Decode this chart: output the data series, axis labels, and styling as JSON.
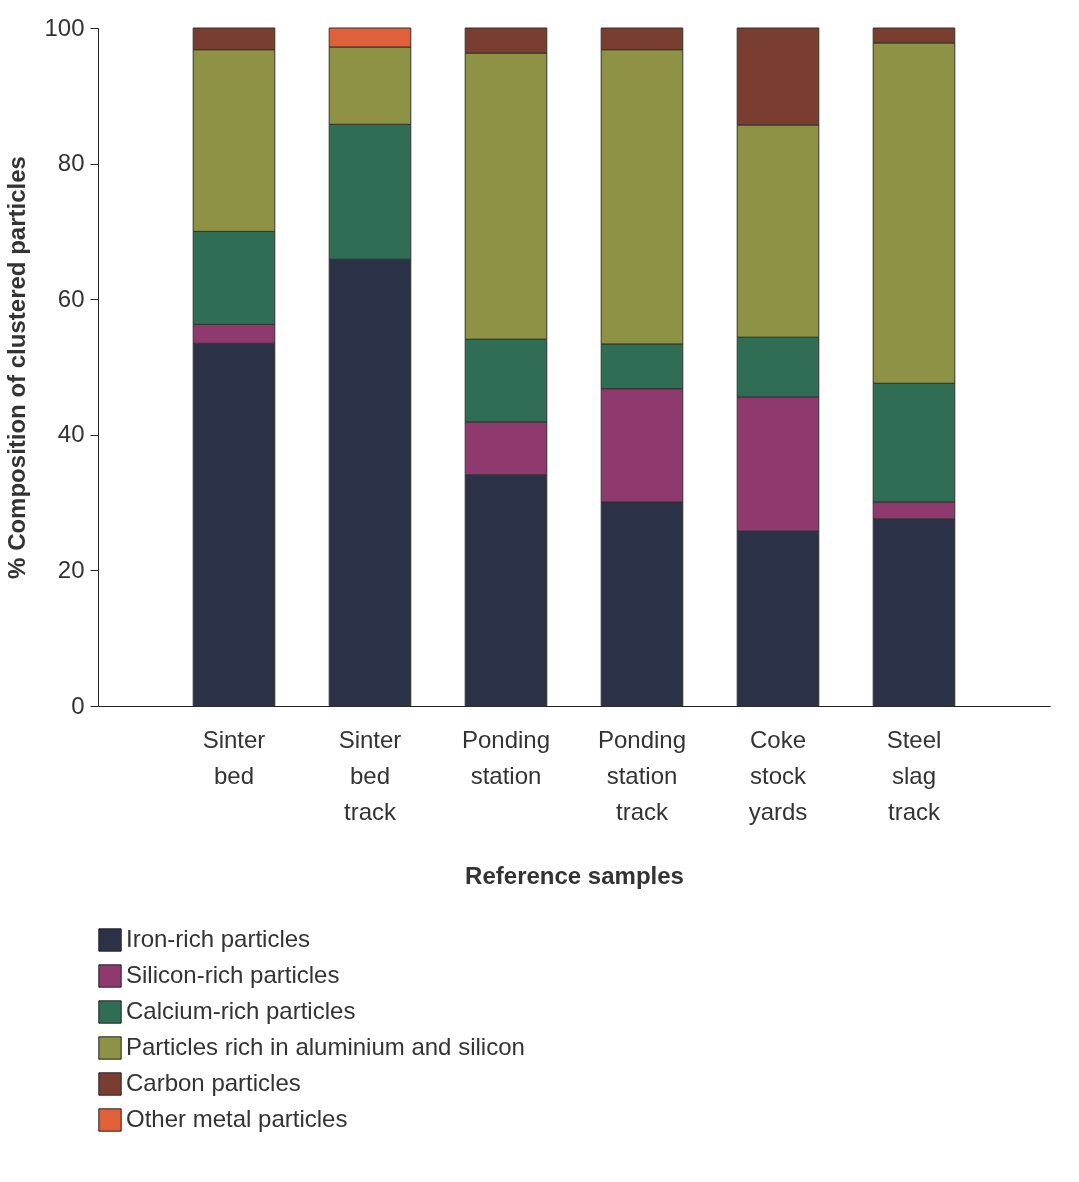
{
  "chart_data": {
    "type": "bar",
    "stacked": true,
    "xlabel": "Reference samples",
    "ylabel": "% Composition of clustered particles",
    "categories": [
      "Sinter bed",
      "Sinter bed track",
      "Ponding station",
      "Ponding station track",
      "Coke stock yards",
      "Steel slag track"
    ],
    "series": [
      {
        "name": "Iron-rich particles",
        "color": "#2b3248",
        "values": [
          53.5,
          65.9,
          34.1,
          30.1,
          25.8,
          27.6
        ]
      },
      {
        "name": "Silicon-rich particles",
        "color": "#8e3a6e",
        "values": [
          2.8,
          null,
          7.8,
          16.7,
          19.8,
          2.5
        ]
      },
      {
        "name": "Calcium-rich particles",
        "color": "#2f6e55",
        "values": [
          13.7,
          19.9,
          12.2,
          6.6,
          8.8,
          17.5
        ]
      },
      {
        "name": "Particles rich in aluminium and silicon",
        "color": "#8e9245",
        "values": [
          26.8,
          11.4,
          42.2,
          43.4,
          31.3,
          50.2
        ]
      },
      {
        "name": "Carbon particles",
        "color": "#7a3e30",
        "values": [
          3.2,
          null,
          3.7,
          3.2,
          14.3,
          2.2
        ]
      },
      {
        "name": "Other metal particles",
        "color": "#e0603a",
        "values": [
          null,
          2.8,
          null,
          null,
          null,
          null
        ]
      }
    ],
    "ylim": [
      0,
      100
    ],
    "yticks": [
      0,
      20,
      40,
      60,
      80,
      100
    ],
    "grid": false,
    "legend": "bottom"
  }
}
